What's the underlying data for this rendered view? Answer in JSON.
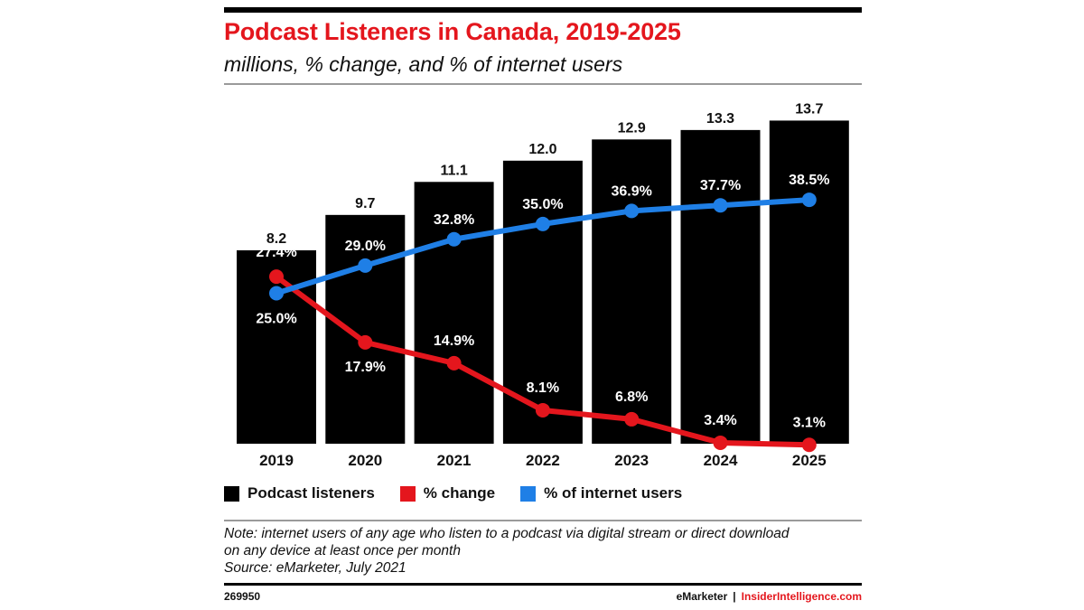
{
  "header": {
    "title": "Podcast Listeners in Canada, 2019-2025",
    "subtitle": "millions, % change, and % of internet users"
  },
  "colors": {
    "title": "#e4161d",
    "bars": "#000000",
    "change_line": "#e4161d",
    "users_line": "#1f7fe6",
    "brand": "#e4161d"
  },
  "chart_data": {
    "type": "bar",
    "categories": [
      "2019",
      "2020",
      "2021",
      "2022",
      "2023",
      "2024",
      "2025"
    ],
    "series": [
      {
        "name": "Podcast listeners",
        "type": "bar",
        "values": [
          8.2,
          9.7,
          11.1,
          12.0,
          12.9,
          13.3,
          13.7
        ],
        "labels": [
          "8.2",
          "9.7",
          "11.1",
          "12.0",
          "12.9",
          "13.3",
          "13.7"
        ]
      },
      {
        "name": "% change",
        "type": "line",
        "values": [
          27.4,
          17.9,
          14.9,
          8.1,
          6.8,
          3.4,
          3.1
        ],
        "labels": [
          "27.4%",
          "17.9%",
          "14.9%",
          "8.1%",
          "6.8%",
          "3.4%",
          "3.1%"
        ]
      },
      {
        "name": "% of internet users",
        "type": "line",
        "values": [
          25.0,
          29.0,
          32.8,
          35.0,
          36.9,
          37.7,
          38.5
        ],
        "labels": [
          "25.0%",
          "29.0%",
          "32.8%",
          "35.0%",
          "36.9%",
          "37.7%",
          "38.5%"
        ]
      }
    ],
    "legend": "bottom-left",
    "grid": false
  },
  "note": {
    "line1": "Note: internet users of any age who listen to a podcast via digital stream or direct download",
    "line2": "on any device at least once per month",
    "source": "Source: eMarketer, July 2021"
  },
  "footer": {
    "chart_id": "269950",
    "brand1": "eMarketer",
    "separator": "|",
    "brand2": "InsiderIntelligence.com"
  }
}
